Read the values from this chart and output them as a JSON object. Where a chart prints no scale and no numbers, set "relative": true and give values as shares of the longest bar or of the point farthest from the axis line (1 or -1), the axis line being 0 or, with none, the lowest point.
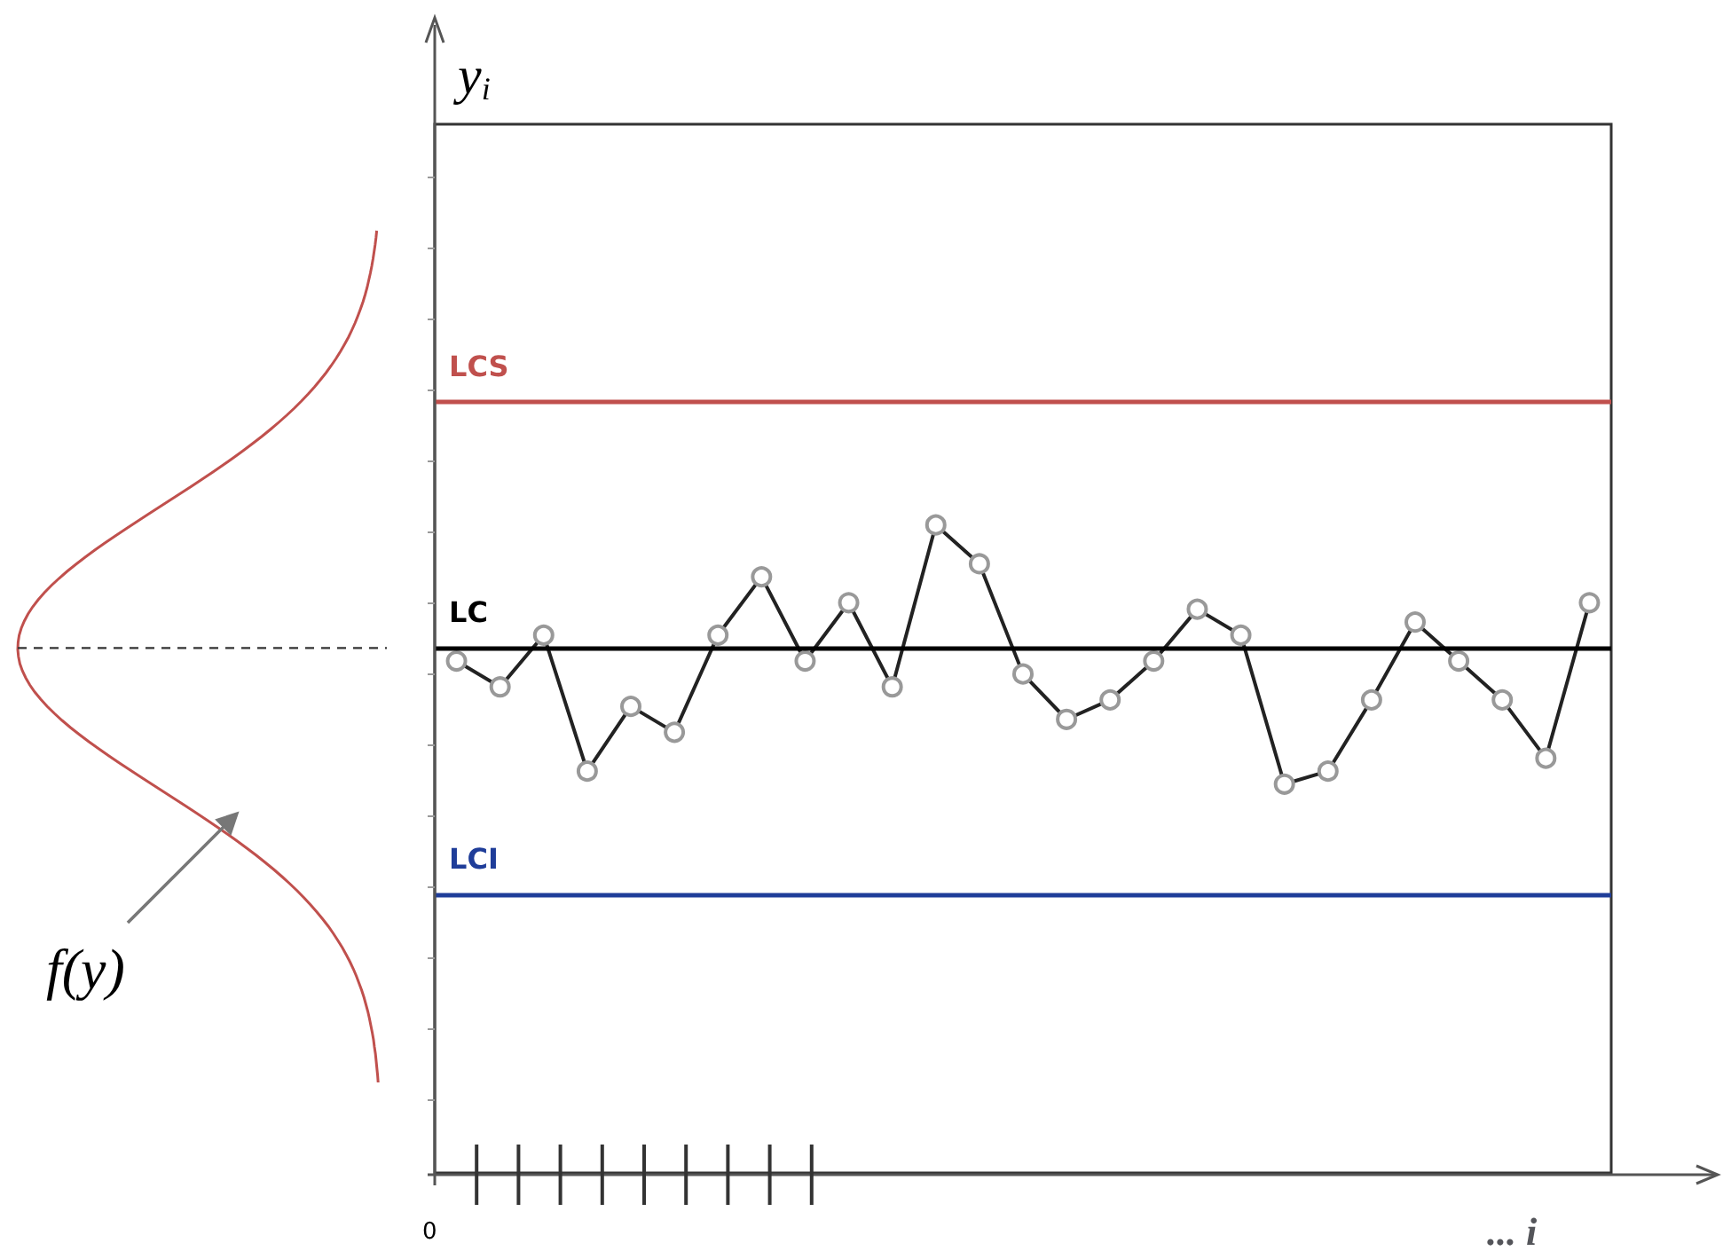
{
  "chart_data": {
    "type": "line",
    "relative": true,
    "xlabel": "... i",
    "categories": [
      null,
      null,
      null,
      null,
      null,
      null,
      null,
      null,
      null,
      null,
      null,
      null,
      null,
      null,
      null,
      null,
      null,
      null,
      null,
      null,
      null,
      null,
      null,
      null,
      null,
      null,
      null
    ],
    "series": [
      {
        "color": "#222222",
        "values": [
          0.79,
          0.75,
          0.83,
          0.62,
          0.72,
          0.68,
          0.83,
          0.92,
          0.79,
          0.88,
          0.75,
          1,
          0.94,
          0.77,
          0.7,
          0.73,
          0.79,
          0.87,
          0.83,
          0.6,
          0.62,
          0.73,
          0.85,
          0.79,
          0.73,
          0.64,
          0.88
        ]
      }
    ],
    "marker": "circle",
    "line_style": "solid",
    "ref_lines": [
      {
        "axis": "y",
        "value": 1.19,
        "label": "LCS",
        "color": "#c0504d"
      },
      {
        "axis": "y",
        "value": 0.81,
        "label": "LC",
        "color": "#000000"
      },
      {
        "axis": "y",
        "value": 0.43,
        "label": "LCI",
        "color": "#1f3d99"
      }
    ],
    "annotations": [
      "y$_{i}$",
      "0",
      "f(y)"
    ]
  }
}
